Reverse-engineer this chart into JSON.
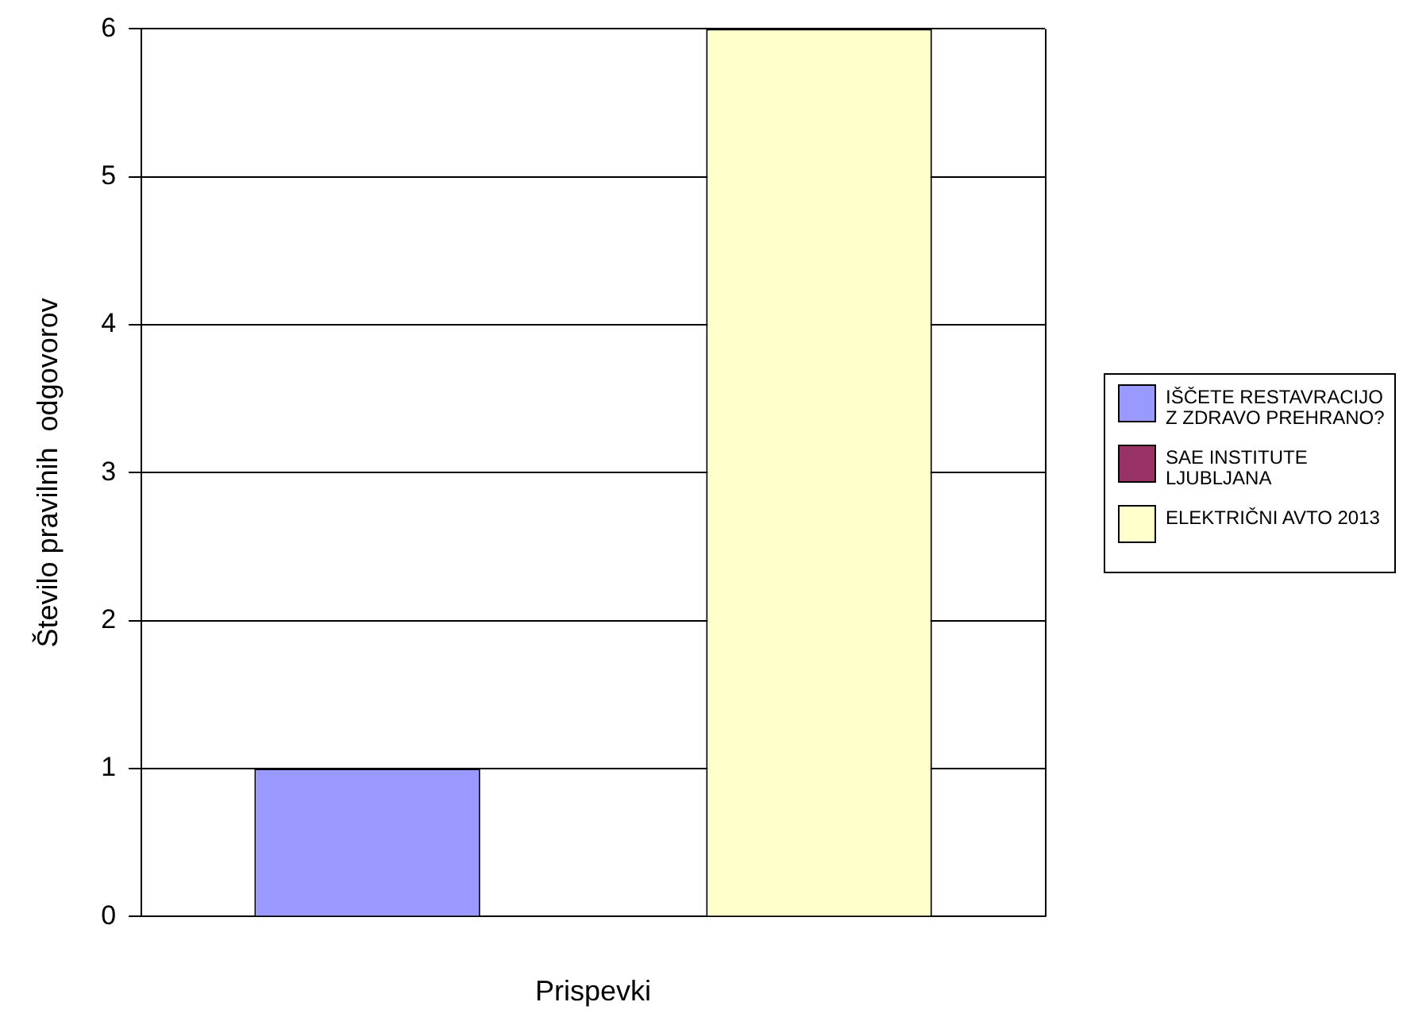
{
  "chart_data": {
    "type": "bar",
    "xlabel": "Prispevki",
    "ylabel": "Število pravilnih  odgovorov",
    "categories": [
      null
    ],
    "series": [
      {
        "name": "IŠČETE RESTAVRACIJO Z ZDRAVO PREHRANO?",
        "color": "#9999ff",
        "values": [
          1
        ]
      },
      {
        "name": "SAE INSTITUTE LJUBLJANA",
        "color": "#993366",
        "values": [
          0
        ]
      },
      {
        "name": "ELEKTRIČNI AVTO 2013",
        "color": "#ffffcc",
        "values": [
          6
        ]
      }
    ],
    "ylim": [
      0,
      6
    ],
    "yticks": [
      0,
      1,
      2,
      3,
      4,
      5,
      6
    ],
    "grid": "y",
    "legend": "right"
  }
}
